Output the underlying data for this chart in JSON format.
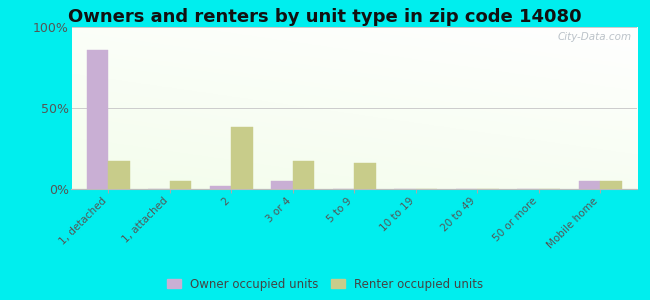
{
  "title": "Owners and renters by unit type in zip code 14080",
  "categories": [
    "1, detached",
    "1, attached",
    "2",
    "3 or 4",
    "5 to 9",
    "10 to 19",
    "20 to 49",
    "50 or more",
    "Mobile home"
  ],
  "owner_values": [
    86,
    0,
    2,
    5,
    0,
    0,
    0,
    0,
    5
  ],
  "renter_values": [
    17,
    5,
    38,
    17,
    16,
    0,
    0,
    0,
    5
  ],
  "owner_color": "#c9afd4",
  "renter_color": "#c8cc8a",
  "ylim": [
    0,
    100
  ],
  "yticks": [
    0,
    50,
    100
  ],
  "ytick_labels": [
    "0%",
    "50%",
    "100%"
  ],
  "outer_background": "#00eeee",
  "bar_width": 0.35,
  "title_fontsize": 13,
  "watermark": "City-Data.com",
  "legend_labels": [
    "Owner occupied units",
    "Renter occupied units"
  ]
}
